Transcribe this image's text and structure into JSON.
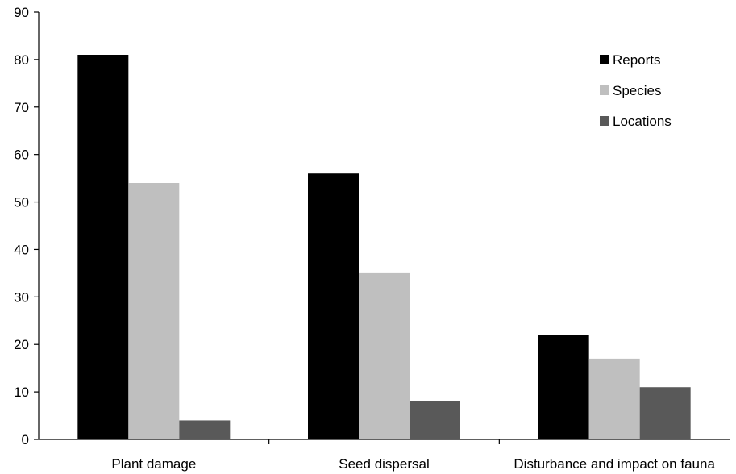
{
  "chart_data": {
    "type": "bar",
    "title": "",
    "xlabel": "",
    "ylabel": "",
    "ylim": [
      0,
      90
    ],
    "yticks": [
      0,
      10,
      20,
      30,
      40,
      50,
      60,
      70,
      80,
      90
    ],
    "grid": false,
    "legend_position": "top-right",
    "categories": [
      "Plant damage",
      "Seed dispersal",
      "Disturbance and impact on fauna"
    ],
    "series": [
      {
        "name": "Reports",
        "color": "#000000",
        "values": [
          81,
          56,
          22
        ]
      },
      {
        "name": "Species",
        "color": "#bfbfbf",
        "values": [
          54,
          35,
          17
        ]
      },
      {
        "name": "Locations",
        "color": "#595959",
        "values": [
          4,
          8,
          11
        ]
      }
    ]
  }
}
